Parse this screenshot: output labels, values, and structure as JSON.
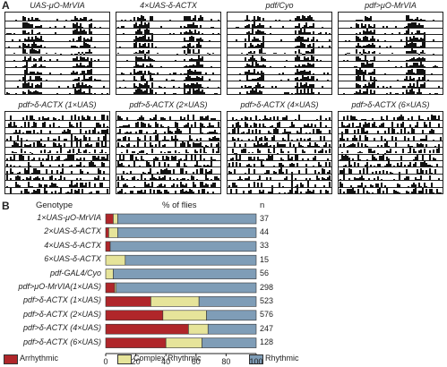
{
  "panel_a": {
    "letter": "A",
    "actograms": [
      {
        "title": "UAS-μO-MrVIA",
        "activity": "rhythmic"
      },
      {
        "title": "4×UAS-δ-ACTX",
        "activity": "rhythmic"
      },
      {
        "title": "pdf/Cyo",
        "activity": "rhythmic"
      },
      {
        "title": "pdf>μO-MrVIA",
        "activity": "rhythmic"
      },
      {
        "title": "pdf>δ-ACTX (1×UAS)",
        "activity": "arrhythmic"
      },
      {
        "title": "pdf>δ-ACTX (2×UAS)",
        "activity": "arrhythmic"
      },
      {
        "title": "pdf>δ-ACTX (4×UAS)",
        "activity": "arrhythmic"
      },
      {
        "title": "pdf>δ-ACTX (6×UAS)",
        "activity": "arrhythmic"
      }
    ]
  },
  "panel_b": {
    "letter": "B",
    "header_genotype": "Genotype",
    "header_percent": "% of flies",
    "header_n": "n"
  },
  "colors": {
    "arrhythmic": "#b0262a",
    "complex": "#e6e49a",
    "rhythmic": "#7f9db7",
    "ink": "#222222"
  },
  "chart_data": {
    "type": "bar",
    "orientation": "horizontal",
    "stacked": true,
    "categories": [
      "1×UAS-μO-MrVIA",
      "2×UAS-δ-ACTX",
      "4×UAS-δ-ACTX",
      "6×UAS-δ-ACTX",
      "pdf-GAL4/Cyo",
      "pdf>μO-MrVIA(1×UAS)",
      "pdf>δ-ACTX (1×UAS)",
      "pdf>δ-ACTX (2×UAS)",
      "pdf>δ-ACTX (4×UAS)",
      "pdf>δ-ACTX (6×UAS)"
    ],
    "n": [
      "37",
      "44",
      "33",
      "15",
      "56",
      "298",
      "523",
      "576",
      "247",
      "128"
    ],
    "series": [
      {
        "name": "Arrhythmic",
        "values": [
          5,
          2,
          3,
          0,
          0,
          6,
          30,
          38,
          55,
          40
        ]
      },
      {
        "name": "Complex Rhythmic",
        "values": [
          3,
          6,
          0,
          13,
          5,
          1,
          32,
          29,
          13,
          24
        ]
      },
      {
        "name": "Rhythmic",
        "values": [
          92,
          92,
          97,
          87,
          95,
          93,
          38,
          33,
          32,
          36
        ]
      }
    ],
    "xlim": [
      0,
      100
    ],
    "xticks": [
      "0",
      "20",
      "40",
      "60",
      "80",
      "100"
    ],
    "legend_position": "bottom"
  }
}
